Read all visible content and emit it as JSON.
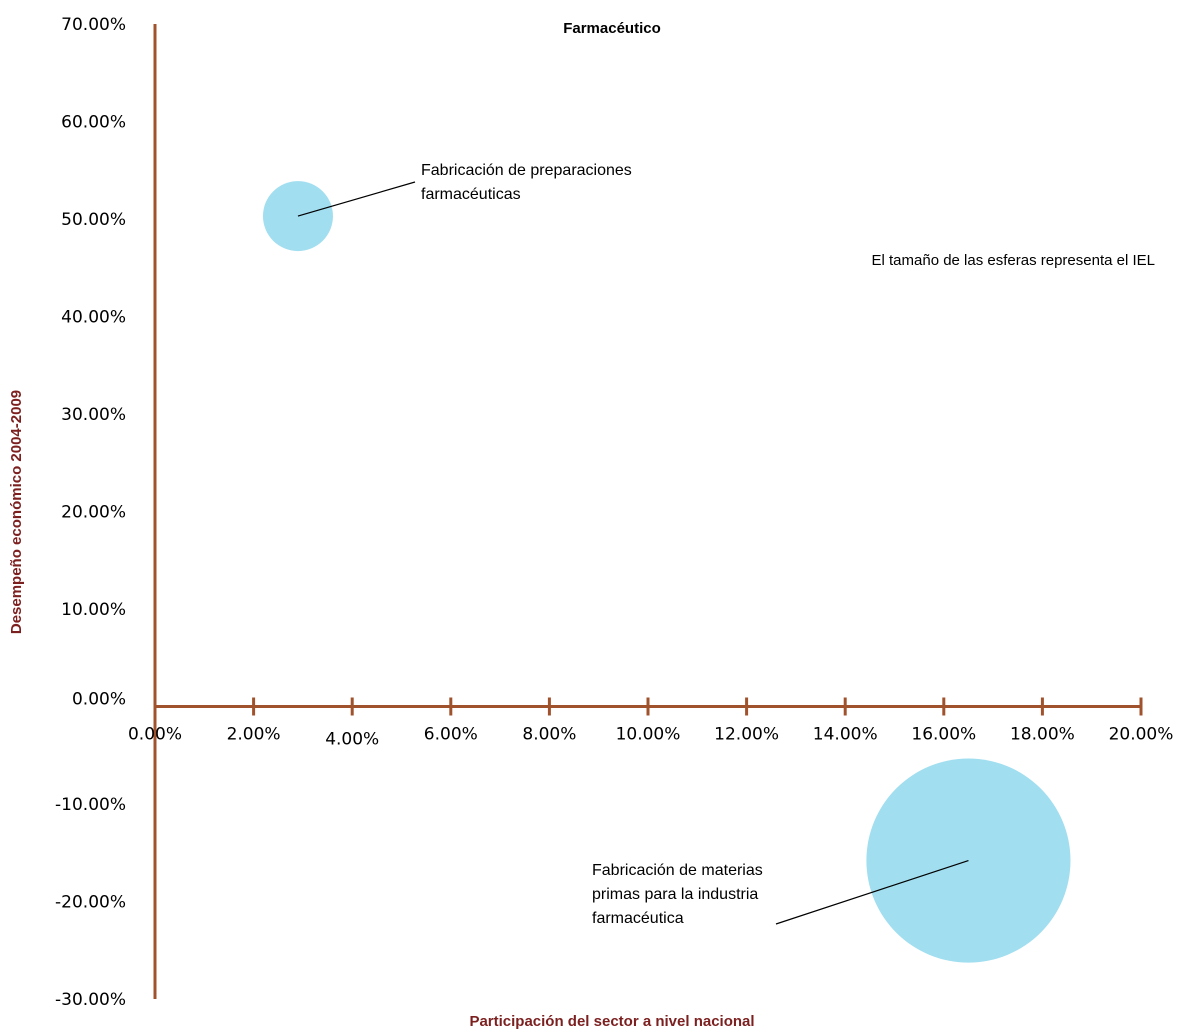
{
  "chart_data": {
    "type": "bubble",
    "title": "Farmacéutico",
    "xlabel": "Participación del sector a nivel nacional",
    "ylabel": "Desempeño económico 2004-2009",
    "xlim": [
      0,
      20
    ],
    "ylim": [
      -30,
      70
    ],
    "x_ticks": [
      0,
      2,
      4,
      6,
      8,
      10,
      12,
      14,
      16,
      18,
      20
    ],
    "y_ticks": [
      -30,
      -20,
      -10,
      0,
      10,
      20,
      30,
      40,
      50,
      60,
      70
    ],
    "x_tick_labels": [
      "0.00%",
      "2.00%",
      "4.00%",
      "6.00%",
      "8.00%",
      "10.00%",
      "12.00%",
      "14.00%",
      "16.00%",
      "18.00%",
      "20.00%"
    ],
    "y_tick_labels": [
      "-30.00%",
      "-20.00%",
      "-10.00%",
      "0.00%",
      "10.00%",
      "20.00%",
      "30.00%",
      "40.00%",
      "50.00%",
      "60.00%",
      "70.00%"
    ],
    "points": [
      {
        "label": "Fabricación de preparaciones farmacéuticas",
        "label_lines": [
          "Fabricación de preparaciones",
          "farmacéuticas"
        ],
        "x": 2.9,
        "y": 50.3,
        "size": 1
      },
      {
        "label": "Fabricación de materias primas para la industria farmacéutica",
        "label_lines": [
          "Fabricación de materias",
          "primas para la industria",
          "farmacéutica"
        ],
        "x": 16.5,
        "y": -15.8,
        "size": 8.5
      }
    ],
    "annotations": [
      "El tamaño de las esferas representa el IEL"
    ],
    "bubble_color": "#a0def0",
    "axis_color": "#a0522d",
    "axis_title_color": "#7b1f1f",
    "legend": "none",
    "grid": false
  }
}
